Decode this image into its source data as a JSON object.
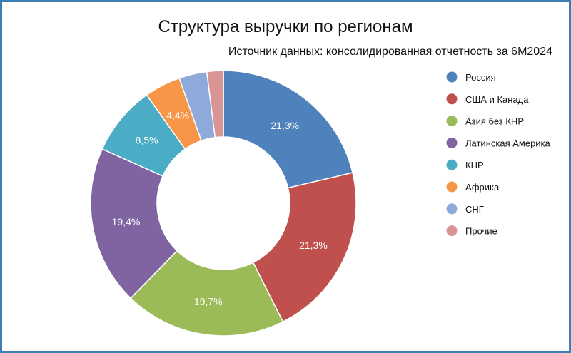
{
  "title": "Структура выручки по регионам",
  "subtitle": "Источник данных: консолидированная отчетность за 6М2024",
  "chart_data": {
    "type": "pie",
    "variant": "donut",
    "title": "Структура выручки по регионам",
    "subtitle": "Источник данных: консолидированная отчетность за 6М2024",
    "legend_position": "right",
    "slices": [
      {
        "name": "Россия",
        "value": 21.3,
        "label": "21,3%",
        "color": "#4f81bd"
      },
      {
        "name": "США и Канада",
        "value": 21.3,
        "label": "21,3%",
        "color": "#c0504d"
      },
      {
        "name": "Азия без КНР",
        "value": 19.7,
        "label": "19,7%",
        "color": "#9bbb59"
      },
      {
        "name": "Латинская Америка",
        "value": 19.4,
        "label": "19,4%",
        "color": "#8064a2"
      },
      {
        "name": "КНР",
        "value": 8.5,
        "label": "8,5%",
        "color": "#4bacc6"
      },
      {
        "name": "Африка",
        "value": 4.4,
        "label": "4,4%",
        "color": "#f79646"
      },
      {
        "name": "СНГ",
        "value": 3.4,
        "label": "",
        "color": "#8eaadb"
      },
      {
        "name": "Прочие",
        "value": 2.0,
        "label": "",
        "color": "#d99594"
      }
    ]
  }
}
